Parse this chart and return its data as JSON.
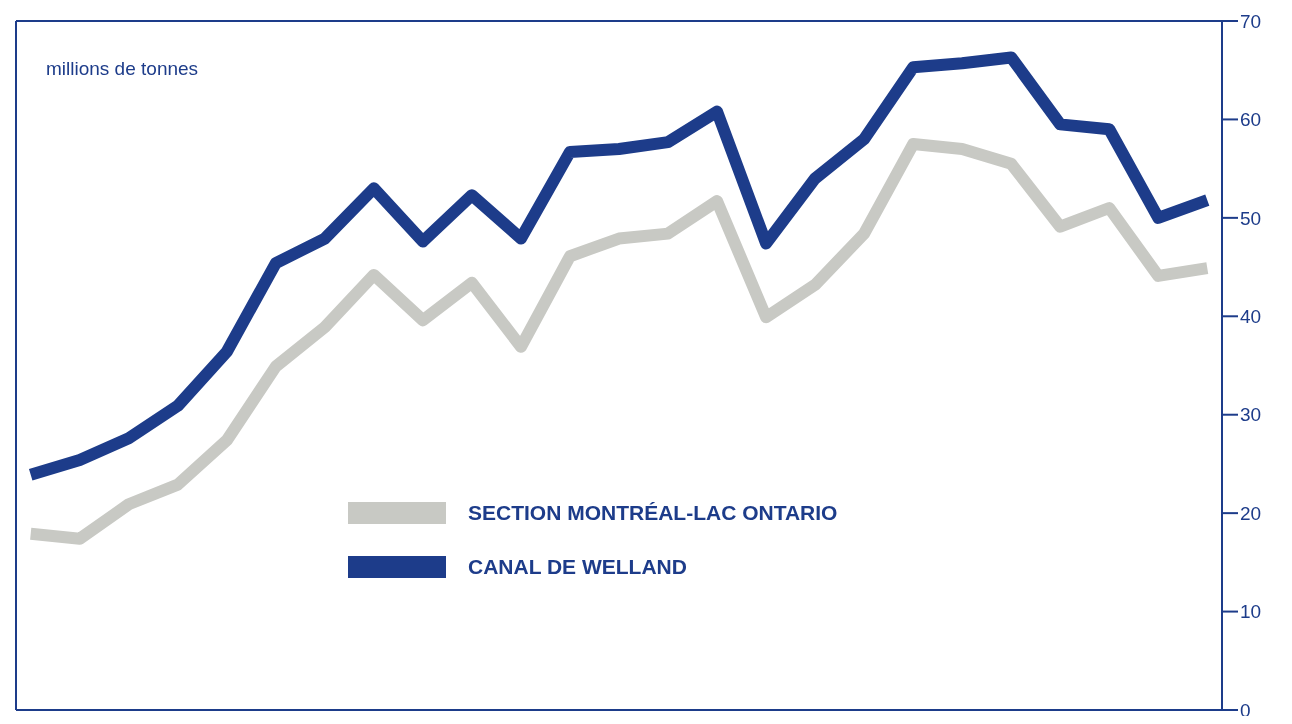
{
  "chart_data": {
    "type": "line",
    "ylabel": "millions de tonnes",
    "categories": [
      null,
      null,
      null,
      null,
      null,
      null,
      null,
      null,
      null,
      null,
      null,
      null,
      null,
      null,
      null,
      null,
      null,
      null,
      null,
      null,
      null,
      null,
      null,
      null,
      null
    ],
    "series": [
      {
        "name": "SECTION MONTRÉAL-LAC ONTARIO",
        "color": "#c8c9c4",
        "values": [
          17.9,
          17.4,
          20.9,
          22.9,
          27.4,
          34.9,
          38.9,
          44.2,
          39.6,
          43.4,
          36.9,
          46.1,
          47.9,
          48.4,
          51.7,
          39.9,
          43.2,
          48.4,
          57.5,
          57,
          55.5,
          49.1,
          51,
          44.1,
          44.9
        ]
      },
      {
        "name": "CANAL DE WELLAND",
        "color": "#1d3c8a",
        "values": [
          23.9,
          25.4,
          27.6,
          30.9,
          36.4,
          45.4,
          47.9,
          53,
          47.6,
          52.3,
          47.9,
          56.7,
          57,
          57.7,
          60.8,
          47.4,
          54,
          58,
          65.3,
          65.7,
          66.3,
          59.5,
          59,
          50,
          51.8
        ]
      }
    ],
    "ylim": [
      0,
      70
    ],
    "yticks": [
      0,
      10,
      20,
      30,
      40,
      50,
      60,
      70
    ],
    "grid": false,
    "legend": "center",
    "marker": "none",
    "line_style": "solid",
    "tick_labels": "y"
  }
}
